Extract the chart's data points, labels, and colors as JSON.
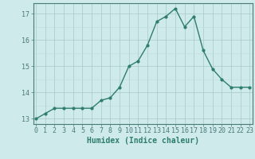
{
  "x": [
    0,
    1,
    2,
    3,
    4,
    5,
    6,
    7,
    8,
    9,
    10,
    11,
    12,
    13,
    14,
    15,
    16,
    17,
    18,
    19,
    20,
    21,
    22,
    23
  ],
  "y": [
    13.0,
    13.2,
    13.4,
    13.4,
    13.4,
    13.4,
    13.4,
    13.7,
    13.8,
    14.2,
    15.0,
    15.2,
    15.8,
    16.7,
    16.9,
    17.2,
    16.5,
    16.9,
    15.6,
    14.9,
    14.5,
    14.2,
    14.2,
    14.2
  ],
  "ylim": [
    12.8,
    17.4
  ],
  "xlim": [
    -0.3,
    23.3
  ],
  "yticks": [
    13,
    14,
    15,
    16,
    17
  ],
  "xticks": [
    0,
    1,
    2,
    3,
    4,
    5,
    6,
    7,
    8,
    9,
    10,
    11,
    12,
    13,
    14,
    15,
    16,
    17,
    18,
    19,
    20,
    21,
    22,
    23
  ],
  "xlabel": "Humidex (Indice chaleur)",
  "line_color": "#2e7d6e",
  "marker": "o",
  "marker_size": 2.0,
  "line_width": 1.0,
  "bg_color": "#ceeaea",
  "grid_color_major": "#a8c8c8",
  "grid_color_minor": "#c0dada",
  "xlabel_fontsize": 7.0,
  "tick_fontsize": 6.0,
  "spine_color": "#4a7a7a"
}
